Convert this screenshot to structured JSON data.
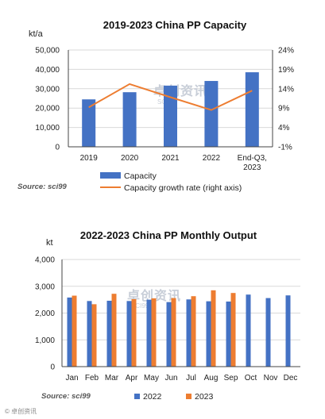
{
  "colors": {
    "bar": "#4472C4",
    "line": "#ED7D31",
    "bar2023": "#ED7D31",
    "grid": "#d9d9d9",
    "axis": "#444444"
  },
  "watermark": {
    "main": "卓创资讯",
    "sub": "SCI99"
  },
  "corner_mark": "© 卓创资讯",
  "chart_data": [
    {
      "type": "bar",
      "title": "2019-2023  China PP Capacity",
      "ylabel": "kt/a",
      "ylim": [
        0,
        50000
      ],
      "y_ticks": [
        "0",
        "10,000",
        "20,000",
        "30,000",
        "40,000",
        "50,000"
      ],
      "y2lim": [
        -1,
        24
      ],
      "y2_ticks": [
        "-1%",
        "4%",
        "9%",
        "14%",
        "19%",
        "24%"
      ],
      "categories": [
        "2019",
        "2020",
        "2021",
        "2022",
        "End-Q3, 2023"
      ],
      "category_lines": [
        [
          "2019"
        ],
        [
          "2020"
        ],
        [
          "2021"
        ],
        [
          "2022"
        ],
        [
          "End-Q3,",
          "2023"
        ]
      ],
      "series": [
        {
          "name": "Capacity",
          "type": "bar",
          "values": [
            24500,
            28200,
            31600,
            34000,
            38500
          ]
        },
        {
          "name": "Capacity growth rate (right axis)",
          "type": "line",
          "axis": "right",
          "values": [
            9.2,
            15.2,
            11.8,
            8.5,
            13.5
          ]
        }
      ],
      "source": "Source: sci99",
      "legend_position": "bottom"
    },
    {
      "type": "bar",
      "title": "2022-2023  China PP Monthly Output",
      "ylabel": "kt",
      "ylim": [
        0,
        4000
      ],
      "y_ticks": [
        "0",
        "1,000",
        "2,000",
        "3,000",
        "4,000"
      ],
      "categories": [
        "Jan",
        "Feb",
        "Mar",
        "Apr",
        "May",
        "Jun",
        "Jul",
        "Aug",
        "Sep",
        "Oct",
        "Nov",
        "Dec"
      ],
      "series": [
        {
          "name": "2022",
          "values": [
            2580,
            2450,
            2460,
            2450,
            2500,
            2410,
            2510,
            2440,
            2430,
            2690,
            2560,
            2660
          ]
        },
        {
          "name": "2023",
          "values": [
            2650,
            2330,
            2720,
            2520,
            2550,
            2560,
            2630,
            2850,
            2750,
            null,
            null,
            null
          ]
        }
      ],
      "source": "Source: sci99",
      "legend_position": "bottom"
    }
  ]
}
